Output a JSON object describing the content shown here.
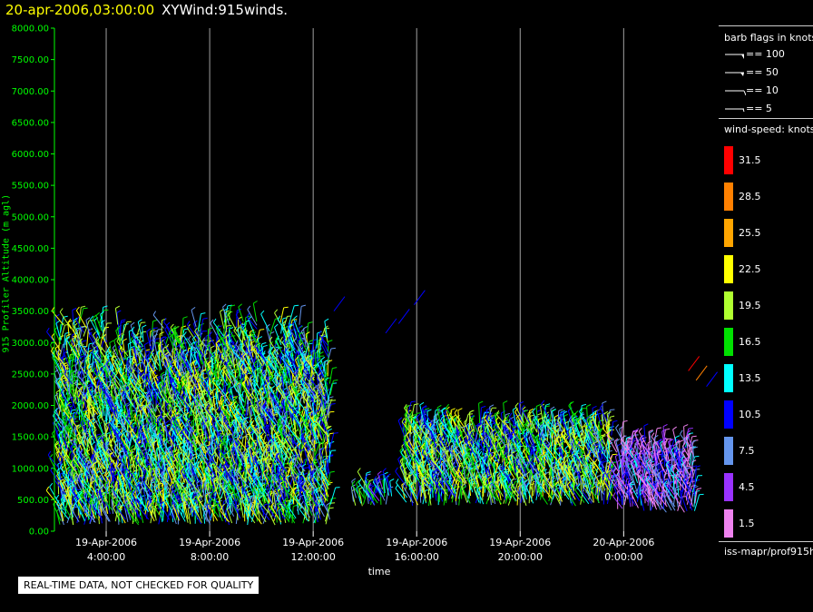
{
  "header": {
    "datetime": "20-apr-2006,03:00:00",
    "title": "XYWind:915winds."
  },
  "chart_data": {
    "type": "scatter",
    "ylabel": "915 Profiler Altitude (m agl)",
    "xlabel": "time",
    "ylim": [
      0,
      8000
    ],
    "yticks": [
      "0.00",
      "500.00",
      "1000.00",
      "1500.00",
      "2000.00",
      "2500.00",
      "3000.00",
      "3500.00",
      "4000.00",
      "4500.00",
      "5000.00",
      "5500.00",
      "6000.00",
      "6500.00",
      "7000.00",
      "7500.00",
      "8000.00"
    ],
    "xticks": [
      {
        "date": "19-Apr-2006",
        "time": "4:00:00"
      },
      {
        "date": "19-Apr-2006",
        "time": "8:00:00"
      },
      {
        "date": "19-Apr-2006",
        "time": "12:00:00"
      },
      {
        "date": "19-Apr-2006",
        "time": "16:00:00"
      },
      {
        "date": "19-Apr-2006",
        "time": "20:00:00"
      },
      {
        "date": "20-Apr-2006",
        "time": "0:00:00"
      }
    ],
    "grid": "vertical",
    "data_segments": [
      {
        "start_hour": 2.2,
        "end_hour": 12.6,
        "min_alt": 100,
        "max_alt": 3400,
        "top_alt": 2500,
        "peak_speed": 15
      },
      {
        "start_hour": 13.6,
        "end_hour": 15.0,
        "min_alt": 400,
        "max_alt": 700,
        "top_alt": 600,
        "peak_speed": 12
      },
      {
        "start_hour": 15.6,
        "end_hour": 23.6,
        "min_alt": 400,
        "max_alt": 1800,
        "top_alt": 1600,
        "peak_speed": 15
      },
      {
        "start_hour": 23.8,
        "end_hour": 26.8,
        "min_alt": 300,
        "max_alt": 1500,
        "top_alt": 1200,
        "peak_speed": 6
      }
    ]
  },
  "disclaimer": "REAL-TIME DATA, NOT CHECKED FOR QUALITY",
  "legend": {
    "barb_title": "barb flags in knots",
    "barbs": [
      {
        "label": "== 100"
      },
      {
        "label": "== 50"
      },
      {
        "label": "== 10"
      },
      {
        "label": "== 5"
      }
    ],
    "speed_title": "wind-speed: knots",
    "speed_scale": [
      {
        "label": "31.5",
        "color": "#ff0000"
      },
      {
        "label": "28.5",
        "color": "#ff8000"
      },
      {
        "label": "25.5",
        "color": "#ffa500"
      },
      {
        "label": "22.5",
        "color": "#ffff00"
      },
      {
        "label": "19.5",
        "color": "#b0ff30"
      },
      {
        "label": "16.5",
        "color": "#00e000"
      },
      {
        "label": "13.5",
        "color": "#00ffff"
      },
      {
        "label": "10.5",
        "color": "#0000ff"
      },
      {
        "label": "7.5",
        "color": "#6495ed"
      },
      {
        "label": "4.5",
        "color": "#9932ff"
      },
      {
        "label": "1.5",
        "color": "#ee82ee"
      }
    ],
    "source": "iss-mapr/prof915h"
  }
}
